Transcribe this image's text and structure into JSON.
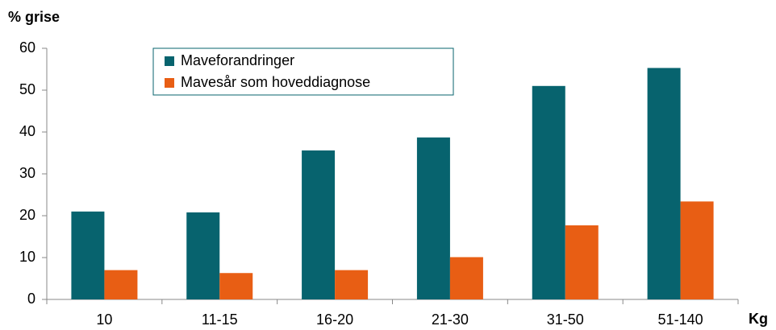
{
  "chart_data": {
    "type": "bar",
    "y_label": "% grise",
    "x_label": "Kg",
    "categories": [
      "10",
      "11-15",
      "16-20",
      "21-30",
      "31-50",
      "51-140"
    ],
    "series": [
      {
        "name": "Maveforandringer",
        "color": "#07636e",
        "values": [
          21,
          20.8,
          35.6,
          38.7,
          51,
          55.3
        ]
      },
      {
        "name": "Mavesår som hoveddiagnose",
        "color": "#e85e14",
        "values": [
          7,
          6.3,
          7,
          10.1,
          17.7,
          23.4
        ]
      }
    ],
    "ylim": [
      0,
      60
    ],
    "yticks": [
      0,
      10,
      20,
      30,
      40,
      50,
      60
    ],
    "grid": false
  }
}
